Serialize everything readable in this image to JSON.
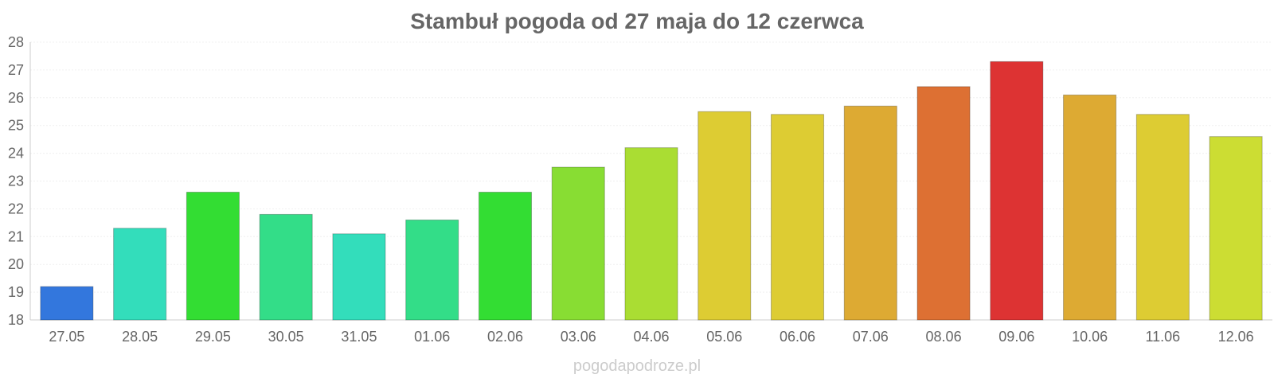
{
  "chart_data": {
    "type": "bar",
    "title": "Stambuł pogoda od 27 maja do 12 czerwca",
    "xlabel": "",
    "ylabel": "",
    "ylim": [
      18,
      28
    ],
    "yticks": [
      18,
      19,
      20,
      21,
      22,
      23,
      24,
      25,
      26,
      27,
      28
    ],
    "grid": true,
    "categories": [
      "27.05",
      "28.05",
      "29.05",
      "30.05",
      "31.05",
      "01.06",
      "02.06",
      "03.06",
      "04.06",
      "05.06",
      "06.06",
      "07.06",
      "08.06",
      "09.06",
      "10.06",
      "11.06",
      "12.06"
    ],
    "values": [
      19.2,
      21.3,
      22.6,
      21.8,
      21.1,
      21.6,
      22.6,
      23.5,
      24.2,
      25.5,
      25.4,
      25.7,
      26.4,
      27.3,
      26.1,
      25.4,
      24.6
    ],
    "colors": [
      "#3377dd",
      "#33ddbb",
      "#33dd33",
      "#33dd88",
      "#33ddbb",
      "#33dd88",
      "#33dd33",
      "#88dd33",
      "#aadd33",
      "#ddcc33",
      "#ddcc33",
      "#ddaa33",
      "#dd7033",
      "#dd3333",
      "#ddaa33",
      "#ddcc33",
      "#ccdd33"
    ]
  },
  "watermark": "pogodapodroze.pl"
}
